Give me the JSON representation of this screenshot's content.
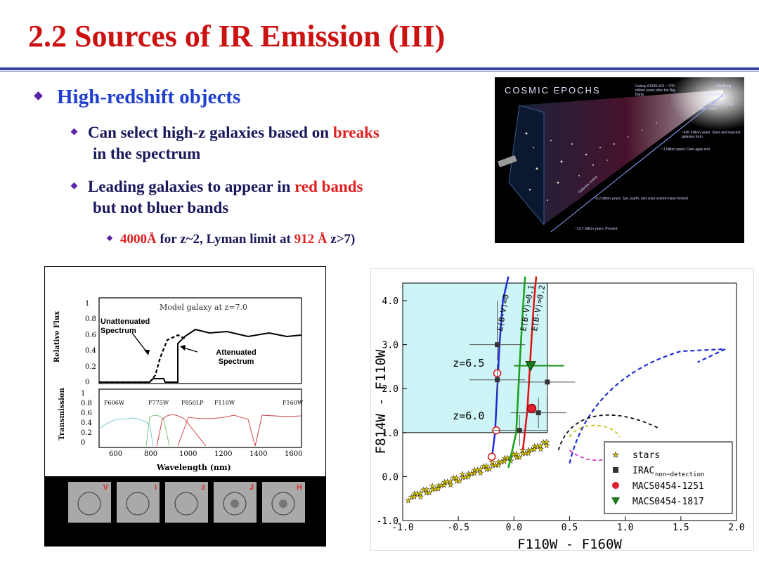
{
  "title": "2.2 Sources of IR Emission (III)",
  "bullets": {
    "l1": "High-redshift objects",
    "l2a_pre": "Can select high-z galaxies based on ",
    "l2a_red": "breaks",
    "l2a_post": "in the spectrum",
    "l2b_pre": "Leading galaxies to appear in ",
    "l2b_red": "red bands",
    "l2b_post": "but not bluer bands",
    "l3_red1": "4000Å",
    "l3_mid": " for z~2, Lyman limit at ",
    "l3_red2": "912 Å",
    "l3_post": " z>7)"
  },
  "cosmic": {
    "title": "Cosmic Epochs",
    "galaxy_label": "Galaxy A1689-zD1: ~700 million years after the Big Bang",
    "big_bang": "Big Bang",
    "inflation": "Inflation era",
    "dark_ages": "~380,000 years: \"Dark Ages\" begin",
    "first_stars": "~400 million years: Stars and nascent galaxies form",
    "dark_end": "~1 billion years: Dark ages end",
    "sun": "~9.2 billion years: Sun, Earth, and solar system have formed",
    "present": "~13.7 billion years: Present",
    "evolution": "Galaxies evolve"
  },
  "sed_plot": {
    "title": "Model galaxy at z=7.0",
    "ylabel_top": "Relative Flux",
    "ylabel_bottom": "Transmission",
    "xlabel": "Wavelength (nm)",
    "unatt": "Unattenuated Spectrum",
    "att": "Attenuated Spectrum",
    "filters": [
      "F606W",
      "F775W",
      "F850LP",
      "F110W",
      "F160W"
    ],
    "top_yticks": [
      "0",
      "0.2",
      "0.4",
      "0.6",
      "0.8",
      "1"
    ],
    "bottom_yticks": [
      "0",
      "0.2",
      "0.4",
      "0.6",
      "0.8",
      "1"
    ],
    "xticks": [
      "600",
      "800",
      "1000",
      "1200",
      "1400",
      "1600"
    ],
    "stamp_bands": [
      "V",
      "i",
      "z",
      "J",
      "H"
    ]
  },
  "chart_data": {
    "type": "scatter",
    "xlabel": "F110W - F160W",
    "ylabel": "F814W - F110W",
    "xlim": [
      -1.0,
      2.0
    ],
    "ylim": [
      -1.0,
      4.4
    ],
    "xticks": [
      "-1.0",
      "-0.5",
      "0.0",
      "0.5",
      "1.0",
      "1.5",
      "2.0"
    ],
    "yticks": [
      "-1.0",
      "0.0",
      "1.0",
      "2.0",
      "3.0",
      "4.0"
    ],
    "tracks": [
      {
        "name": "E(B-V)=0",
        "color": "#1f2ad1",
        "x": [
          -0.2,
          -0.17,
          -0.15,
          -0.13,
          -0.1,
          -0.05
        ],
        "y": [
          0.4,
          1.0,
          2.0,
          3.0,
          4.0,
          4.6
        ]
      },
      {
        "name": "E(B-V)=0.1",
        "color": "#18a018",
        "x": [
          -0.05,
          0.02,
          0.05,
          0.08,
          0.1
        ],
        "y": [
          0.2,
          1.0,
          2.5,
          3.8,
          4.6
        ]
      },
      {
        "name": "E(B-V)=0.2",
        "color": "#e01010",
        "x": [
          0.08,
          0.12,
          0.15,
          0.18,
          0.2
        ],
        "y": [
          0.6,
          1.5,
          2.8,
          4.0,
          4.6
        ]
      }
    ],
    "redshift_labels": [
      {
        "text": "z=6.5",
        "x": -0.55,
        "y": 2.5
      },
      {
        "text": "z=6.0",
        "x": -0.55,
        "y": 1.3
      }
    ],
    "red_circles": [
      {
        "x": -0.15,
        "y": 2.35
      },
      {
        "x": -0.16,
        "y": 1.05
      },
      {
        "x": -0.2,
        "y": 0.45
      }
    ],
    "irac": [
      {
        "x": -0.15,
        "y": 3.0
      },
      {
        "x": -0.15,
        "y": 2.2
      },
      {
        "x": 0.05,
        "y": 1.05
      },
      {
        "x": 0.22,
        "y": 1.45
      },
      {
        "x": 0.3,
        "y": 2.15
      }
    ],
    "macs1251": {
      "x": 0.16,
      "y": 1.55
    },
    "macs1817": {
      "x": 0.15,
      "y": 2.52
    },
    "legend": [
      "stars",
      "IRAC",
      "MACS0454-1251",
      "MACS0454-1817"
    ],
    "legend_sub": "non−detection",
    "legend_position": "bottom-right"
  }
}
